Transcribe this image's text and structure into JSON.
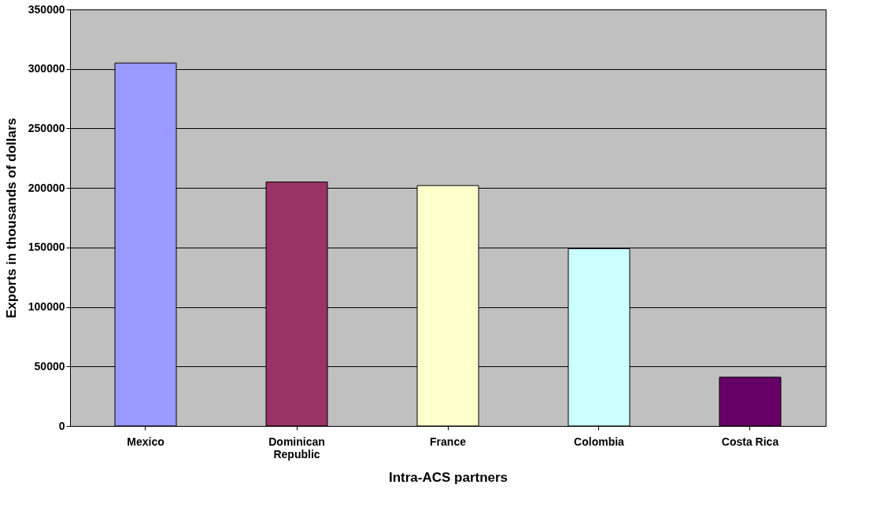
{
  "chart_data": {
    "type": "bar",
    "xlabel": "Intra-ACS partners",
    "ylabel": "Exports in thousands of dollars",
    "categories": [
      "Mexico",
      "Dominican Republic",
      "France",
      "Colombia",
      "Costa Rica"
    ],
    "values": [
      305000,
      205000,
      202000,
      149000,
      41000
    ],
    "colors": [
      "#9999ff",
      "#993366",
      "#ffffcc",
      "#ccffff",
      "#660066"
    ],
    "ylim": [
      0,
      350000
    ],
    "yticks": [
      0,
      50000,
      100000,
      150000,
      200000,
      250000,
      300000,
      350000
    ],
    "grid": "y"
  }
}
